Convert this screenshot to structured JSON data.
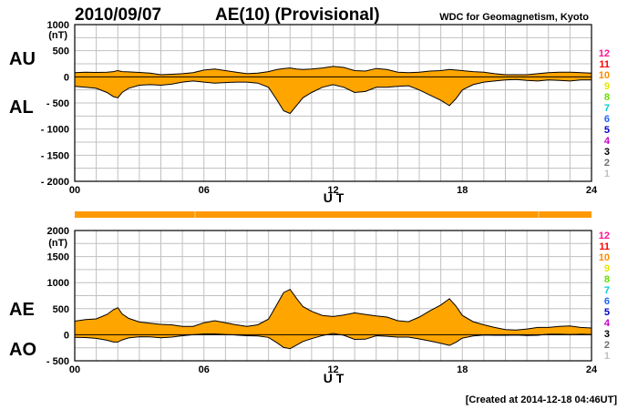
{
  "page": {
    "date": "2010/09/07",
    "title": "AE(10) (Provisional)",
    "source": "WDC for Geomagnetism, Kyoto",
    "footer": "[Created at 2014-12-18 04:46UT]"
  },
  "colors": {
    "fill": "#ffa500",
    "stroke": "#000000",
    "grid": "#c0c0c0",
    "quality_bar": "#ff9900"
  },
  "station_legend": [
    {
      "label": "12",
      "color": "#ff1493"
    },
    {
      "label": "11",
      "color": "#ff0000"
    },
    {
      "label": "10",
      "color": "#ff8c00"
    },
    {
      "label": "9",
      "color": "#e6e600"
    },
    {
      "label": "8",
      "color": "#66dd00"
    },
    {
      "label": "7",
      "color": "#00cccc"
    },
    {
      "label": "6",
      "color": "#1e64ff"
    },
    {
      "label": "5",
      "color": "#0000c8"
    },
    {
      "label": "4",
      "color": "#cc00cc"
    },
    {
      "label": "3",
      "color": "#000000"
    },
    {
      "label": "2",
      "color": "#707070"
    },
    {
      "label": "1",
      "color": "#c0c0c0"
    }
  ],
  "chart_data": [
    {
      "type": "area",
      "upper_series_label": "AU",
      "lower_series_label": "AL",
      "xlabel": "U T",
      "unit": "(nT)",
      "xlim": [
        0,
        24
      ],
      "ylim": [
        -2000,
        1000
      ],
      "x_ticks": [
        "00",
        "06",
        "12",
        "18",
        "24"
      ],
      "y_ticks": [
        "1000",
        "500",
        "0",
        "- 500",
        "- 1000",
        "- 1500",
        "- 2000"
      ],
      "x_hours": [
        0,
        0.5,
        1.0,
        1.5,
        1.8,
        2.0,
        2.2,
        2.5,
        3.0,
        3.5,
        4.0,
        4.5,
        5.0,
        5.5,
        6.0,
        6.5,
        7.0,
        7.5,
        8.0,
        8.5,
        9.0,
        9.4,
        9.7,
        10.0,
        10.3,
        10.6,
        11.0,
        11.5,
        12.0,
        12.5,
        13.0,
        13.5,
        14.0,
        14.5,
        15.0,
        15.5,
        16.0,
        16.5,
        17.0,
        17.4,
        17.7,
        18.0,
        18.5,
        19.0,
        19.5,
        20.0,
        20.5,
        21.0,
        21.5,
        22.0,
        22.5,
        23.0,
        23.5,
        24.0
      ],
      "au": [
        80,
        90,
        85,
        90,
        100,
        120,
        100,
        95,
        85,
        70,
        40,
        50,
        60,
        80,
        130,
        150,
        120,
        90,
        60,
        70,
        100,
        140,
        160,
        170,
        150,
        140,
        150,
        170,
        200,
        180,
        120,
        110,
        160,
        140,
        90,
        80,
        90,
        110,
        120,
        140,
        130,
        120,
        100,
        90,
        60,
        40,
        40,
        40,
        60,
        80,
        90,
        90,
        80,
        70
      ],
      "al": [
        -180,
        -200,
        -220,
        -300,
        -380,
        -400,
        -300,
        -220,
        -160,
        -150,
        -160,
        -140,
        -100,
        -80,
        -100,
        -120,
        -110,
        -100,
        -100,
        -120,
        -200,
        -450,
        -650,
        -700,
        -550,
        -400,
        -300,
        -200,
        -150,
        -200,
        -300,
        -280,
        -200,
        -200,
        -180,
        -170,
        -250,
        -350,
        -450,
        -550,
        -420,
        -250,
        -150,
        -100,
        -80,
        -60,
        -50,
        -70,
        -80,
        -60,
        -70,
        -80,
        -60,
        -60
      ]
    },
    {
      "type": "area",
      "upper_series_label": "AE",
      "lower_series_label": "AO",
      "xlabel": "U T",
      "unit": "(nT)",
      "xlim": [
        0,
        24
      ],
      "ylim": [
        -500,
        2000
      ],
      "x_ticks": [
        "00",
        "06",
        "12",
        "18",
        "24"
      ],
      "y_ticks": [
        "2000",
        "1500",
        "1000",
        "500",
        "0",
        "- 500"
      ],
      "x_hours": [
        0,
        0.5,
        1.0,
        1.5,
        1.8,
        2.0,
        2.2,
        2.5,
        3.0,
        3.5,
        4.0,
        4.5,
        5.0,
        5.5,
        6.0,
        6.5,
        7.0,
        7.5,
        8.0,
        8.5,
        9.0,
        9.4,
        9.7,
        10.0,
        10.3,
        10.6,
        11.0,
        11.5,
        12.0,
        12.5,
        13.0,
        13.5,
        14.0,
        14.5,
        15.0,
        15.5,
        16.0,
        16.5,
        17.0,
        17.4,
        17.7,
        18.0,
        18.5,
        19.0,
        19.5,
        20.0,
        20.5,
        21.0,
        21.5,
        22.0,
        22.5,
        23.0,
        23.5,
        24.0
      ],
      "ae": [
        260,
        290,
        305,
        390,
        480,
        520,
        400,
        315,
        245,
        220,
        200,
        190,
        160,
        160,
        230,
        270,
        230,
        190,
        160,
        190,
        300,
        590,
        810,
        870,
        700,
        540,
        450,
        370,
        350,
        380,
        420,
        390,
        360,
        340,
        270,
        250,
        340,
        460,
        570,
        690,
        550,
        370,
        250,
        190,
        140,
        100,
        90,
        110,
        140,
        140,
        160,
        170,
        140,
        130
      ],
      "ao": [
        -50,
        -55,
        -70,
        -105,
        -140,
        -140,
        -100,
        -62,
        -38,
        -40,
        -60,
        -45,
        -20,
        0,
        15,
        15,
        5,
        -5,
        -20,
        -25,
        -50,
        -155,
        -245,
        -265,
        -200,
        -130,
        -75,
        -15,
        25,
        -10,
        -90,
        -85,
        -20,
        -30,
        -45,
        -45,
        -80,
        -120,
        -165,
        -205,
        -145,
        -65,
        -25,
        -5,
        -10,
        -10,
        -5,
        -15,
        -10,
        10,
        10,
        5,
        10,
        5
      ]
    }
  ]
}
